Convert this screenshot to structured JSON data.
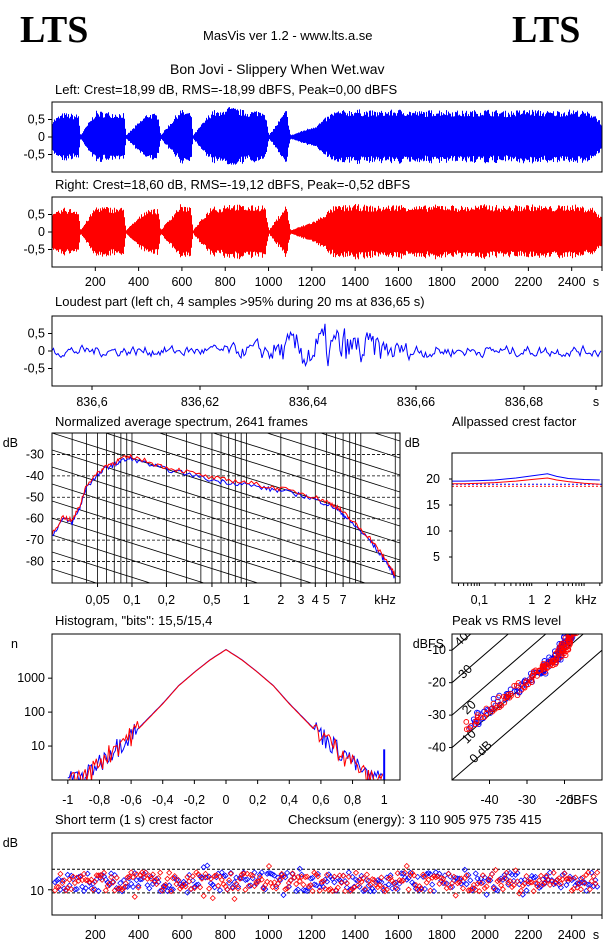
{
  "header": {
    "logo_left": "LTS",
    "logo_right": "LTS",
    "app": "MasVis ver 1.2 - www.lts.a.se",
    "file": "Bon Jovi - Slippery When Wet.wav"
  },
  "colors": {
    "left": "#0000ff",
    "right": "#ff0000",
    "grid": "#000000"
  },
  "chart_data": [
    {
      "id": "left-waveform",
      "type": "area",
      "title": "Left: Crest=18,99 dB, RMS=-18,99 dBFS, Peak=0,00 dBFS",
      "ylim": [
        -1,
        1
      ],
      "yticks": [
        "0,5",
        "0",
        "-0,5"
      ],
      "series": [
        {
          "name": "Left",
          "color": "#0000ff",
          "envelope_x": [
            0,
            50,
            120,
            130,
            200,
            330,
            340,
            440,
            490,
            500,
            590,
            640,
            650,
            740,
            780,
            800,
            900,
            980,
            1000,
            1080,
            1100,
            1220,
            1300,
            1400,
            1500,
            1600,
            1700,
            1800,
            1900,
            2000,
            2100,
            2200,
            2300,
            2400,
            2500,
            2540
          ],
          "envelope": [
            0.5,
            0.7,
            0.65,
            0.05,
            0.75,
            0.7,
            0.05,
            0.7,
            0.65,
            0.05,
            0.8,
            0.7,
            0.05,
            0.8,
            0.7,
            0.9,
            0.75,
            0.8,
            0.05,
            0.8,
            0.05,
            0.35,
            0.75,
            0.8,
            0.75,
            0.8,
            0.75,
            0.8,
            0.75,
            0.8,
            0.75,
            0.8,
            0.75,
            0.8,
            0.7,
            0.4
          ]
        }
      ]
    },
    {
      "id": "right-waveform",
      "type": "area",
      "title": "Right: Crest=18,60 dB, RMS=-19,12 dBFS, Peak=-0,52 dBFS",
      "ylim": [
        -1,
        1
      ],
      "yticks": [
        "0,5",
        "0",
        "-0,5"
      ],
      "xticks": [
        "200",
        "400",
        "600",
        "800",
        "1000",
        "1200",
        "1400",
        "1600",
        "1800",
        "2000",
        "2200",
        "2400",
        "s"
      ],
      "series": [
        {
          "name": "Right",
          "color": "#ff0000",
          "envelope_x": [
            0,
            50,
            120,
            130,
            200,
            330,
            340,
            440,
            490,
            500,
            590,
            640,
            650,
            740,
            780,
            800,
            900,
            980,
            1000,
            1080,
            1100,
            1220,
            1300,
            1400,
            1500,
            1600,
            1700,
            1800,
            1900,
            2000,
            2100,
            2200,
            2300,
            2400,
            2500,
            2540
          ],
          "envelope": [
            0.5,
            0.7,
            0.65,
            0.05,
            0.75,
            0.7,
            0.05,
            0.7,
            0.65,
            0.05,
            0.8,
            0.7,
            0.05,
            0.8,
            0.7,
            0.85,
            0.75,
            0.8,
            0.05,
            0.8,
            0.05,
            0.35,
            0.75,
            0.8,
            0.75,
            0.8,
            0.75,
            0.8,
            0.75,
            0.8,
            0.75,
            0.8,
            0.75,
            0.8,
            0.7,
            0.4
          ]
        }
      ]
    },
    {
      "id": "loudest-part",
      "type": "line",
      "title": "Loudest part (left  ch, 4 samples >95% during 20 ms at 836,65 s)",
      "xlim": [
        836.594,
        836.694
      ],
      "ylim": [
        -1,
        1
      ],
      "yticks": [
        "0,5",
        "0",
        "-0,5"
      ],
      "xticks": [
        "836,6",
        "836,62",
        "836,64",
        "836,66",
        "836,68",
        "s"
      ]
    },
    {
      "id": "spectrum",
      "type": "line",
      "title": "Normalized average spectrum, 2641 frames",
      "ylabel": "dB",
      "xlabel": "kHz",
      "yticks": [
        "-30",
        "-40",
        "-50",
        "-60",
        "-70",
        "-80"
      ],
      "xticks": [
        "0,05",
        "0,1",
        "0,2",
        "0,5",
        "1",
        "2",
        "3",
        "4",
        "5",
        "7",
        "kHz"
      ],
      "x_khz": [
        0.02,
        0.025,
        0.03,
        0.035,
        0.04,
        0.05,
        0.06,
        0.07,
        0.08,
        0.1,
        0.15,
        0.2,
        0.3,
        0.5,
        0.7,
        1,
        1.5,
        2,
        3,
        4,
        5,
        6,
        7,
        8,
        10,
        12,
        14,
        16,
        18,
        20
      ],
      "series": [
        {
          "name": "Left",
          "color": "#0000ff",
          "values": [
            -68,
            -60,
            -62,
            -55,
            -45,
            -40,
            -36,
            -35,
            -33,
            -32,
            -35,
            -37,
            -39,
            -42,
            -43,
            -44,
            -46,
            -47,
            -49,
            -51,
            -53,
            -55,
            -58,
            -61,
            -66,
            -70,
            -75,
            -79,
            -83,
            -88
          ]
        },
        {
          "name": "Right",
          "color": "#ff0000",
          "values": [
            -67,
            -59,
            -61,
            -54,
            -44,
            -39,
            -35,
            -34,
            -32,
            -31,
            -34,
            -36,
            -38,
            -41,
            -42,
            -43,
            -45,
            -46,
            -48,
            -50,
            -52,
            -54,
            -57,
            -60,
            -65,
            -69,
            -74,
            -78,
            -82,
            -87
          ]
        }
      ]
    },
    {
      "id": "allpassed-crest",
      "type": "line",
      "title": "Allpassed crest factor",
      "ylabel": "dB",
      "xlabel": "kHz",
      "yticks": [
        "20",
        "15",
        "10",
        "5"
      ],
      "xticks": [
        "0,1",
        "1",
        "2",
        "kHz"
      ],
      "x_khz": [
        0.03,
        0.05,
        0.1,
        0.2,
        0.5,
        1,
        2,
        3,
        5,
        10,
        20
      ],
      "series": [
        {
          "name": "Left",
          "color": "#0000ff",
          "values": [
            19.6,
            19.6,
            19.7,
            19.8,
            20.2,
            20.6,
            21.0,
            20.5,
            20.1,
            19.9,
            19.8
          ]
        },
        {
          "name": "Right",
          "color": "#ff0000",
          "values": [
            19.1,
            19.1,
            19.2,
            19.3,
            19.6,
            19.9,
            20.2,
            19.8,
            19.5,
            19.2,
            19.0
          ]
        }
      ],
      "reference_lines": [
        {
          "color": "#0000ff",
          "value": 19.0
        },
        {
          "color": "#ff0000",
          "value": 18.6
        }
      ]
    },
    {
      "id": "histogram",
      "type": "line",
      "title": "Histogram, \"bits\": 15,5/15,4",
      "ylabel": "n",
      "scale": "log",
      "yticks": [
        "1000",
        "100",
        "10"
      ],
      "xticks": [
        "-1",
        "-0,8",
        "-0,6",
        "-0,4",
        "-0,2",
        "0",
        "0,2",
        "0,4",
        "0,6",
        "0,8",
        "1"
      ],
      "x": [
        -1.0,
        -0.9,
        -0.8,
        -0.7,
        -0.6,
        -0.5,
        -0.4,
        -0.3,
        -0.2,
        -0.1,
        0,
        0.1,
        0.2,
        0.3,
        0.4,
        0.5,
        0.6,
        0.7,
        0.8,
        0.9,
        1.0
      ],
      "series": [
        {
          "name": "Left",
          "color": "#0000ff",
          "values": [
            1,
            1,
            3,
            8,
            20,
            60,
            180,
            600,
            1500,
            3500,
            7000,
            3500,
            1500,
            600,
            180,
            60,
            20,
            8,
            3,
            1,
            1
          ]
        },
        {
          "name": "Right",
          "color": "#ff0000",
          "values": [
            1,
            1,
            3,
            8,
            19,
            58,
            175,
            590,
            1480,
            3450,
            6900,
            3450,
            1480,
            590,
            175,
            58,
            19,
            8,
            3,
            1,
            1
          ]
        }
      ]
    },
    {
      "id": "peak-vs-rms",
      "type": "scatter",
      "title": "Peak vs RMS level",
      "ylabel": "dBFS",
      "xlabel": "dBFS",
      "yticks": [
        "-10",
        "-20",
        "-30",
        "-40"
      ],
      "xticks": [
        "-40",
        "-30",
        "-20",
        "dBFS"
      ],
      "diagonal_labels": [
        "40 dB",
        "30",
        "20",
        "10",
        "0 dB"
      ],
      "series": [
        {
          "name": "Left",
          "color": "#0000ff",
          "x": [
            -45,
            -40,
            -35,
            -30,
            -26,
            -24,
            -22,
            -21,
            -20,
            -19,
            -18,
            -17
          ],
          "y": [
            -33,
            -28,
            -24,
            -20,
            -16,
            -14,
            -12,
            -10,
            -8,
            -6,
            -4,
            -1
          ]
        },
        {
          "name": "Right",
          "color": "#ff0000",
          "x": [
            -46,
            -41,
            -36,
            -31,
            -27,
            -25,
            -23,
            -21,
            -20,
            -19,
            -18,
            -17
          ],
          "y": [
            -34,
            -29,
            -25,
            -21,
            -17,
            -15,
            -13,
            -11,
            -9,
            -7,
            -5,
            -2
          ]
        }
      ]
    },
    {
      "id": "short-term-crest",
      "type": "scatter",
      "title": "Short term (1 s) crest factor",
      "ylabel": "dB",
      "annotation": "Checksum (energy):  3 110 905 975 735 415",
      "yticks": [
        "10"
      ],
      "xticks": [
        "200",
        "400",
        "600",
        "800",
        "1000",
        "1200",
        "1400",
        "1600",
        "1800",
        "2000",
        "2200",
        "2400",
        "s"
      ],
      "mean_db": 12.5,
      "spread_db": 3
    }
  ]
}
